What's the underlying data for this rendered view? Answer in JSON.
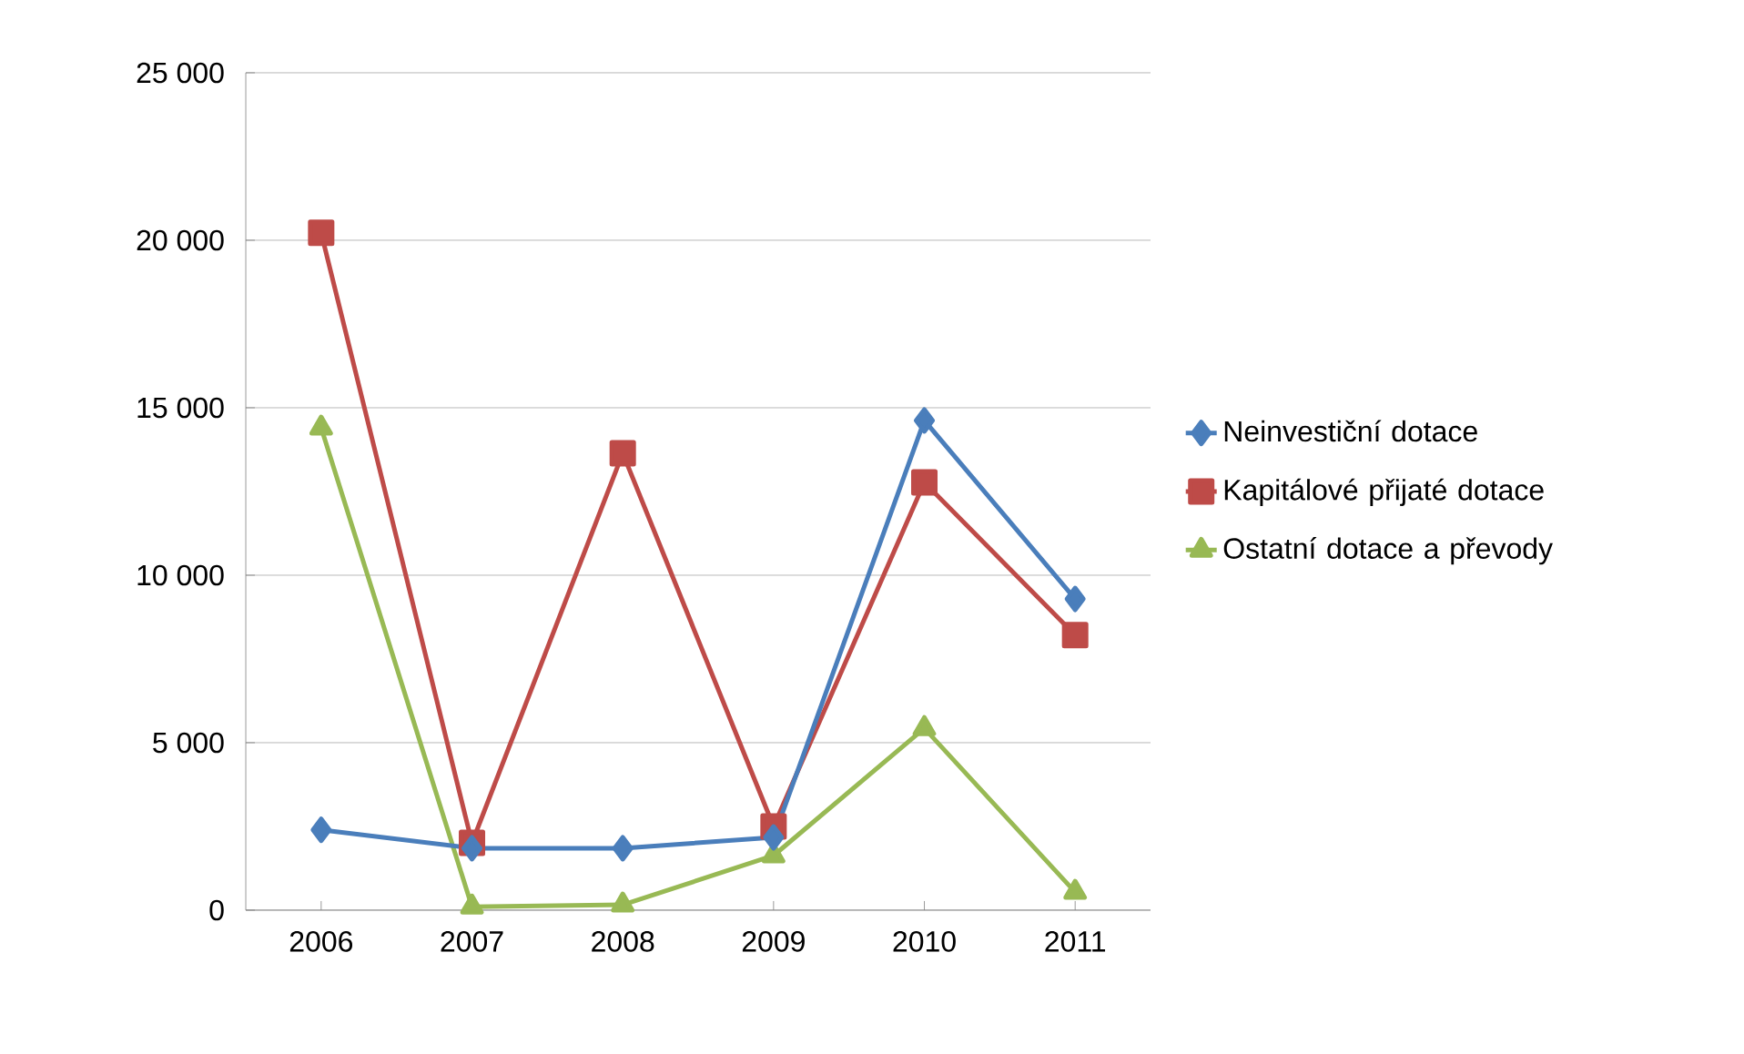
{
  "chart_data": {
    "type": "line",
    "categories": [
      "2006",
      "2007",
      "2008",
      "2009",
      "2010",
      "2011"
    ],
    "series": [
      {
        "name": "Neinvestiční dotace",
        "color": "#4a7ebb",
        "marker": "diamond",
        "values": [
          2400,
          1850,
          1850,
          2170,
          14620,
          9290
        ]
      },
      {
        "name": "Kapitálové přijaté dotace",
        "color": "#be4b48",
        "marker": "square",
        "values": [
          20220,
          2010,
          13640,
          2500,
          12770,
          8210
        ]
      },
      {
        "name": "Ostatní dotace a převody",
        "color": "#98b954",
        "marker": "triangle",
        "values": [
          14400,
          100,
          160,
          1630,
          5430,
          540
        ]
      }
    ],
    "ylim": [
      0,
      25000
    ],
    "yticks": [
      {
        "value": 0,
        "label": "0"
      },
      {
        "value": 5000,
        "label": "5 000"
      },
      {
        "value": 10000,
        "label": "10 000"
      },
      {
        "value": 15000,
        "label": "15 000"
      },
      {
        "value": 20000,
        "label": "20 000"
      },
      {
        "value": 25000,
        "label": "25 000"
      }
    ],
    "grid": "y",
    "legend": "right",
    "line_style": "solid"
  }
}
